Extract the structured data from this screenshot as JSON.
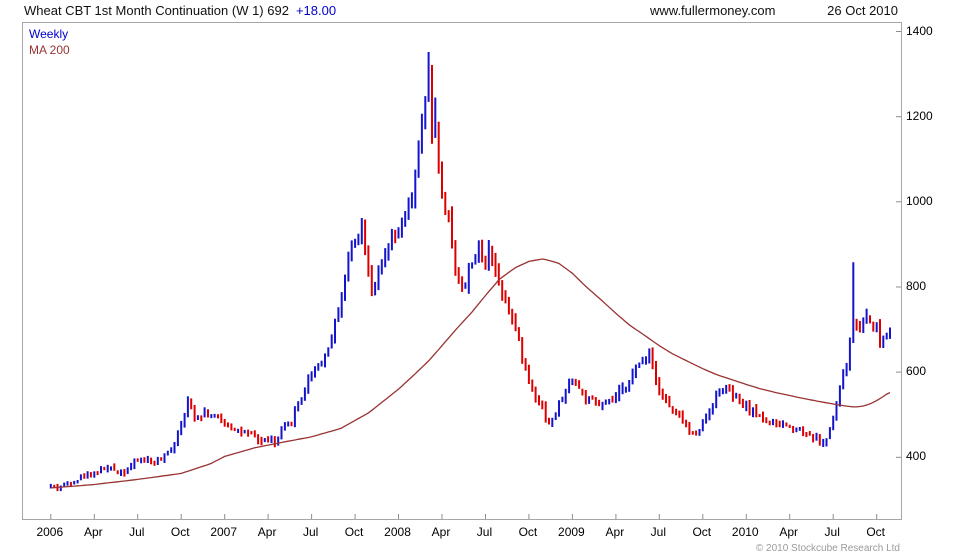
{
  "header": {
    "title": "Wheat CBT 1st Month Continuation (W 1) 692",
    "change": "+18.00",
    "site": "www.fullermoney.com",
    "date": "26 Oct 2010"
  },
  "legend": {
    "series1": "Weekly",
    "series2": "MA 200"
  },
  "footer": {
    "copyright": "© 2010 Stockcube Research Ltd"
  },
  "colors": {
    "up": "#1414cc",
    "down": "#dd0000",
    "ma": "#993333",
    "frame": "#8c8c8c",
    "label": "#000000"
  },
  "chart_data": {
    "type": "ohlc-bar",
    "title": "Wheat CBT 1st Month Continuation (W 1)",
    "interval": "Weekly",
    "last_price": 692,
    "change": "+18.00",
    "legend": [
      "Weekly",
      "MA 200"
    ],
    "ylim": [
      255,
      1420
    ],
    "y_ticks": [
      400,
      600,
      800,
      1000,
      1200,
      1400
    ],
    "x_domain": [
      2005.84,
      2010.89
    ],
    "x_tick_start": 2006.0,
    "x_tick_step": 0.25,
    "x_tick_labels": [
      "2006",
      "Apr",
      "Jul",
      "Oct",
      "2007",
      "Apr",
      "Jul",
      "Oct",
      "2008",
      "Apr",
      "Jul",
      "Oct",
      "2009",
      "Apr",
      "Jul",
      "Oct",
      "2010",
      "Apr",
      "Jul",
      "Oct"
    ],
    "bars_per_year": 52,
    "bar_start": 2006.0,
    "bar_end": 2010.82,
    "noise_pct": 0.016,
    "range_pct": 0.022,
    "seed": 42,
    "weekly_close_anchors": [
      [
        2006.0,
        333
      ],
      [
        2006.04,
        329
      ],
      [
        2006.08,
        336
      ],
      [
        2006.13,
        344
      ],
      [
        2006.17,
        352
      ],
      [
        2006.21,
        361
      ],
      [
        2006.25,
        364
      ],
      [
        2006.29,
        371
      ],
      [
        2006.33,
        375
      ],
      [
        2006.38,
        368
      ],
      [
        2006.42,
        366
      ],
      [
        2006.46,
        379
      ],
      [
        2006.5,
        393
      ],
      [
        2006.54,
        397
      ],
      [
        2006.58,
        386
      ],
      [
        2006.63,
        391
      ],
      [
        2006.67,
        409
      ],
      [
        2006.71,
        432
      ],
      [
        2006.75,
        482
      ],
      [
        2006.79,
        528
      ],
      [
        2006.81,
        511
      ],
      [
        2006.83,
        496
      ],
      [
        2006.88,
        506
      ],
      [
        2006.92,
        499
      ],
      [
        2006.96,
        491
      ],
      [
        2007.0,
        479
      ],
      [
        2007.04,
        471
      ],
      [
        2007.08,
        463
      ],
      [
        2007.13,
        452
      ],
      [
        2007.17,
        448
      ],
      [
        2007.21,
        436
      ],
      [
        2007.25,
        446
      ],
      [
        2007.29,
        429
      ],
      [
        2007.33,
        463
      ],
      [
        2007.38,
        483
      ],
      [
        2007.42,
        521
      ],
      [
        2007.46,
        561
      ],
      [
        2007.5,
        599
      ],
      [
        2007.54,
        619
      ],
      [
        2007.58,
        637
      ],
      [
        2007.63,
        701
      ],
      [
        2007.67,
        781
      ],
      [
        2007.71,
        861
      ],
      [
        2007.75,
        921
      ],
      [
        2007.79,
        946
      ],
      [
        2007.83,
        831
      ],
      [
        2007.85,
        796
      ],
      [
        2007.88,
        821
      ],
      [
        2007.92,
        871
      ],
      [
        2007.96,
        906
      ],
      [
        2008.0,
        926
      ],
      [
        2008.04,
        961
      ],
      [
        2008.08,
        1012
      ],
      [
        2008.1,
        1082
      ],
      [
        2008.13,
        1152
      ],
      [
        2008.15,
        1232
      ],
      [
        2008.17,
        1312
      ],
      [
        2008.19,
        1152
      ],
      [
        2008.21,
        1192
      ],
      [
        2008.23,
        1092
      ],
      [
        2008.25,
        1012
      ],
      [
        2008.29,
        962
      ],
      [
        2008.33,
        832
      ],
      [
        2008.38,
        792
      ],
      [
        2008.42,
        866
      ],
      [
        2008.46,
        886
      ],
      [
        2008.5,
        841
      ],
      [
        2008.52,
        906
      ],
      [
        2008.54,
        871
      ],
      [
        2008.58,
        801
      ],
      [
        2008.63,
        761
      ],
      [
        2008.67,
        701
      ],
      [
        2008.71,
        641
      ],
      [
        2008.75,
        581
      ],
      [
        2008.79,
        546
      ],
      [
        2008.83,
        516
      ],
      [
        2008.85,
        491
      ],
      [
        2008.88,
        479
      ],
      [
        2008.92,
        521
      ],
      [
        2008.96,
        556
      ],
      [
        2009.0,
        586
      ],
      [
        2009.04,
        561
      ],
      [
        2009.08,
        536
      ],
      [
        2009.13,
        526
      ],
      [
        2009.17,
        519
      ],
      [
        2009.21,
        529
      ],
      [
        2009.25,
        541
      ],
      [
        2009.29,
        559
      ],
      [
        2009.33,
        586
      ],
      [
        2009.38,
        613
      ],
      [
        2009.42,
        639
      ],
      [
        2009.44,
        653
      ],
      [
        2009.46,
        621
      ],
      [
        2009.5,
        561
      ],
      [
        2009.54,
        529
      ],
      [
        2009.58,
        506
      ],
      [
        2009.63,
        489
      ],
      [
        2009.67,
        463
      ],
      [
        2009.69,
        449
      ],
      [
        2009.71,
        456
      ],
      [
        2009.75,
        479
      ],
      [
        2009.79,
        513
      ],
      [
        2009.83,
        546
      ],
      [
        2009.87,
        569
      ],
      [
        2009.92,
        546
      ],
      [
        2009.96,
        529
      ],
      [
        2010.0,
        519
      ],
      [
        2010.04,
        506
      ],
      [
        2010.08,
        496
      ],
      [
        2010.13,
        483
      ],
      [
        2010.17,
        473
      ],
      [
        2010.21,
        479
      ],
      [
        2010.25,
        469
      ],
      [
        2010.29,
        473
      ],
      [
        2010.33,
        459
      ],
      [
        2010.38,
        449
      ],
      [
        2010.42,
        439
      ],
      [
        2010.44,
        429
      ],
      [
        2010.46,
        443
      ],
      [
        2010.5,
        491
      ],
      [
        2010.52,
        526
      ],
      [
        2010.54,
        563
      ],
      [
        2010.58,
        619
      ],
      [
        2010.6,
        681
      ],
      [
        2010.62,
        726
      ],
      [
        2010.64,
        701
      ],
      [
        2010.67,
        713
      ],
      [
        2010.69,
        737
      ],
      [
        2010.71,
        719
      ],
      [
        2010.75,
        703
      ],
      [
        2010.77,
        669
      ],
      [
        2010.79,
        683
      ],
      [
        2010.82,
        692
      ]
    ],
    "ma200_anchors": [
      [
        2006.0,
        328
      ],
      [
        2006.25,
        336
      ],
      [
        2006.5,
        348
      ],
      [
        2006.75,
        362
      ],
      [
        2006.92,
        385
      ],
      [
        2007.0,
        402
      ],
      [
        2007.17,
        422
      ],
      [
        2007.33,
        435
      ],
      [
        2007.5,
        448
      ],
      [
        2007.67,
        468
      ],
      [
        2007.83,
        505
      ],
      [
        2008.0,
        560
      ],
      [
        2008.08,
        590
      ],
      [
        2008.17,
        625
      ],
      [
        2008.25,
        662
      ],
      [
        2008.33,
        700
      ],
      [
        2008.42,
        740
      ],
      [
        2008.5,
        780
      ],
      [
        2008.58,
        818
      ],
      [
        2008.67,
        845
      ],
      [
        2008.75,
        860
      ],
      [
        2008.83,
        866
      ],
      [
        2008.92,
        856
      ],
      [
        2009.0,
        832
      ],
      [
        2009.08,
        800
      ],
      [
        2009.17,
        768
      ],
      [
        2009.25,
        738
      ],
      [
        2009.33,
        710
      ],
      [
        2009.42,
        685
      ],
      [
        2009.5,
        662
      ],
      [
        2009.58,
        642
      ],
      [
        2009.67,
        624
      ],
      [
        2009.75,
        608
      ],
      [
        2009.83,
        594
      ],
      [
        2009.92,
        582
      ],
      [
        2010.0,
        571
      ],
      [
        2010.08,
        561
      ],
      [
        2010.17,
        552
      ],
      [
        2010.25,
        545
      ],
      [
        2010.33,
        538
      ],
      [
        2010.42,
        531
      ],
      [
        2010.5,
        525
      ],
      [
        2010.58,
        520
      ],
      [
        2010.63,
        518
      ],
      [
        2010.67,
        520
      ],
      [
        2010.71,
        525
      ],
      [
        2010.75,
        533
      ],
      [
        2010.79,
        543
      ],
      [
        2010.82,
        552
      ]
    ],
    "spikes": [
      {
        "t": 2006.79,
        "high": 542
      },
      {
        "t": 2007.79,
        "high": 962
      },
      {
        "t": 2008.17,
        "high": 1352
      },
      {
        "t": 2008.21,
        "high": 1245
      },
      {
        "t": 2008.88,
        "low": 471
      },
      {
        "t": 2010.44,
        "low": 424
      },
      {
        "t": 2010.62,
        "high": 858
      }
    ]
  }
}
